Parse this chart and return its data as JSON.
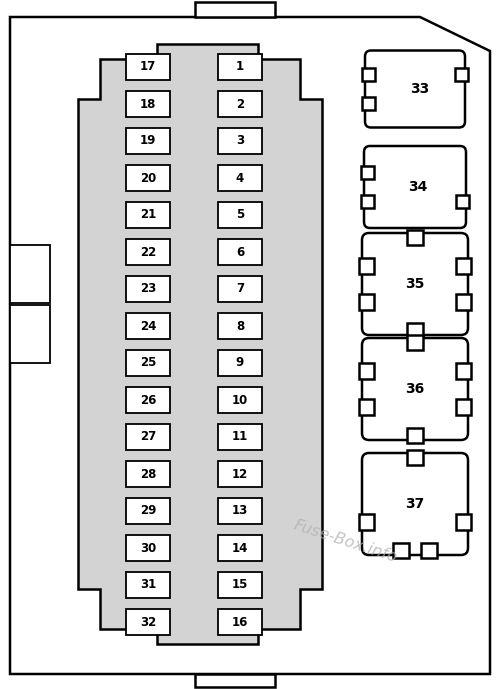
{
  "bg_color": "#ffffff",
  "inner_panel_color": "#d3d3d3",
  "watermark_text": "Fuse-Box.info",
  "watermark_color": "#b0b0b0",
  "left_fuses": [
    17,
    18,
    19,
    20,
    21,
    22,
    23,
    24,
    25,
    26,
    27,
    28,
    29,
    30,
    31,
    32
  ],
  "right_fuses": [
    1,
    2,
    3,
    4,
    5,
    6,
    7,
    8,
    9,
    10,
    11,
    12,
    13,
    14,
    15,
    16
  ],
  "relays": [
    33,
    34,
    35,
    36,
    37
  ],
  "outer_shape": {
    "pts_x": [
      8,
      8,
      350,
      350,
      350,
      422,
      490,
      490,
      8
    ],
    "pts_y": [
      680,
      10,
      10,
      10,
      680,
      680,
      650,
      10,
      10
    ]
  }
}
